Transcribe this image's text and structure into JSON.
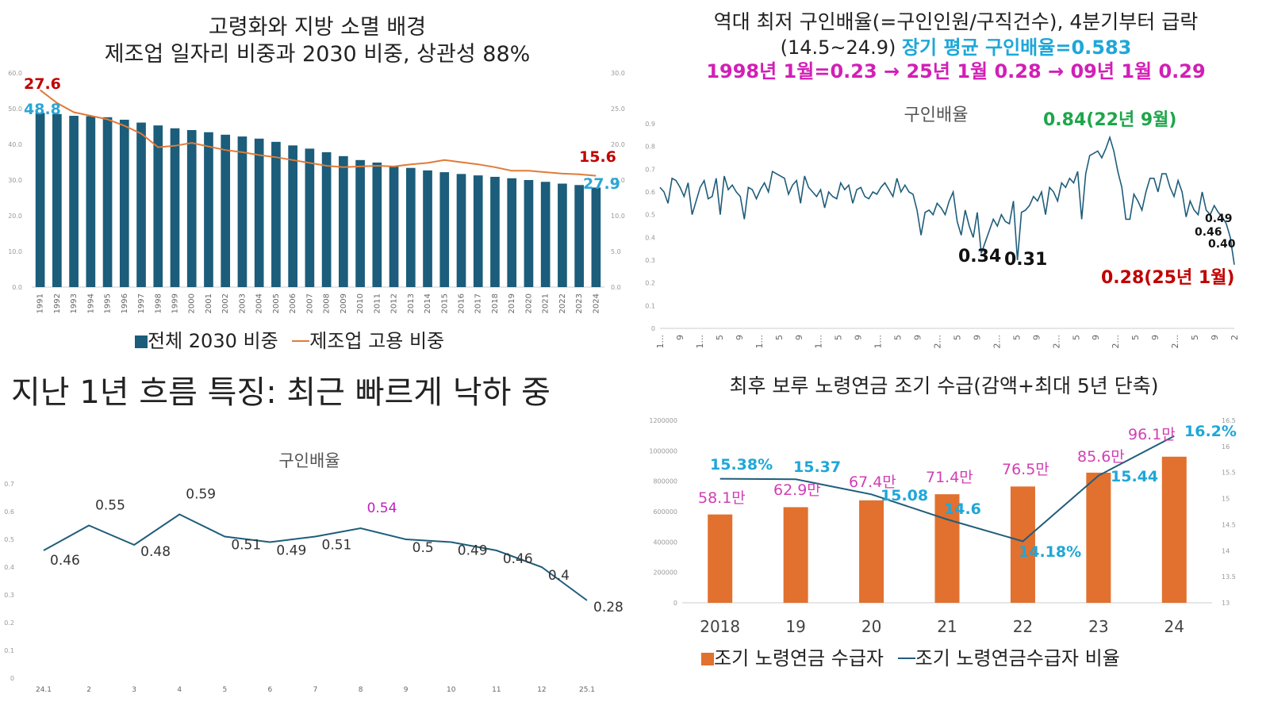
{
  "panel1": {
    "title_line1": "고령화와 지방 소멸 배경",
    "title_line2": "제조업 일자리 비중과 2030 비중, 상관성 88%",
    "legend_bar": "전체 2030 비중",
    "legend_line": "제조업 고용 비중",
    "colors": {
      "bar": "#1b5d7a",
      "line": "#e07b39",
      "red": "#c00000",
      "cyan": "#2aa6d6"
    },
    "callouts": {
      "line_start": "27.6",
      "bar_start": "48.8",
      "line_end": "15.6",
      "bar_end": "27.9"
    },
    "y_left_ticks": [
      "0.0",
      "10.0",
      "20.0",
      "30.0",
      "40.0",
      "50.0",
      "60.0"
    ],
    "y_right_ticks": [
      "0.0",
      "5.0",
      "10.0",
      "15.0",
      "20.0",
      "25.0",
      "30.0"
    ],
    "chart_data": {
      "type": "bar",
      "categories": [
        "1991",
        "1992",
        "1993",
        "1994",
        "1995",
        "1996",
        "1997",
        "1998",
        "1999",
        "2000",
        "2001",
        "2002",
        "2003",
        "2004",
        "2005",
        "2006",
        "2007",
        "2008",
        "2009",
        "2010",
        "2011",
        "2012",
        "2013",
        "2014",
        "2015",
        "2016",
        "2017",
        "2018",
        "2019",
        "2020",
        "2021",
        "2022",
        "2023",
        "2024"
      ],
      "series": [
        {
          "name": "전체 2030 비중",
          "type": "bar",
          "axis": "left",
          "values": [
            48.8,
            48.5,
            48.0,
            47.9,
            47.6,
            46.9,
            46.1,
            45.3,
            44.5,
            44.0,
            43.4,
            42.7,
            42.2,
            41.6,
            40.7,
            39.7,
            38.8,
            37.8,
            36.7,
            35.6,
            34.9,
            34.0,
            33.4,
            32.7,
            32.2,
            31.7,
            31.3,
            30.9,
            30.5,
            30.0,
            29.5,
            29.0,
            28.6,
            27.9
          ]
        },
        {
          "name": "제조업 고용 비중",
          "type": "line",
          "axis": "right",
          "values": [
            27.6,
            25.8,
            24.5,
            24.0,
            23.5,
            22.6,
            21.5,
            19.6,
            19.8,
            20.2,
            19.7,
            19.2,
            18.9,
            18.5,
            18.2,
            17.8,
            17.4,
            17.0,
            16.8,
            16.9,
            17.0,
            16.9,
            17.2,
            17.4,
            17.8,
            17.5,
            17.2,
            16.8,
            16.3,
            16.3,
            16.1,
            15.9,
            15.8,
            15.6
          ]
        }
      ],
      "ylim_left": [
        0,
        60
      ],
      "ylim_right": [
        0,
        30
      ]
    }
  },
  "panel2": {
    "title_line1": "역대 최저 구인배율(=구인인원/구직건수), 4분기부터 급락",
    "title_line2a": "(14.5~24.9) ",
    "title_line2b": "장기 평균 구인배율",
    "title_line2c": "=0.583",
    "title_line3": "1998년 1월=0.23 → 25년 1월 0.28 → 09년 1월 0.29",
    "chart_title": "구인배율",
    "colors": {
      "line": "#1f5d7a",
      "cyan": "#1ea7d8",
      "magenta": "#d21fb6",
      "green": "#1ea64a",
      "red": "#c00000"
    },
    "annotations": {
      "peak": "0.84(22년 9월)",
      "low1": "0.34",
      "low2": "0.31",
      "last": "0.28(25년 1월)",
      "a049": "0.49",
      "a046": "0.46",
      "a040": "0.40"
    },
    "y_ticks": [
      "0",
      "0.1",
      "0.2",
      "0.3",
      "0.4",
      "0.5",
      "0.6",
      "0.7",
      "0.8",
      "0.9"
    ],
    "x_ticks": [
      "1...",
      "9",
      "1...",
      "5",
      "9",
      "1...",
      "5",
      "9",
      "1...",
      "5",
      "9",
      "1...",
      "5",
      "9",
      "2...",
      "5",
      "9",
      "2...",
      "5",
      "9",
      "2...",
      "5",
      "9",
      "2...",
      "5",
      "9",
      "2...",
      "5",
      "9",
      "2"
    ],
    "chart_data": {
      "type": "line",
      "ylim": [
        0,
        0.9
      ],
      "values": [
        0.62,
        0.6,
        0.55,
        0.66,
        0.65,
        0.62,
        0.58,
        0.64,
        0.5,
        0.56,
        0.62,
        0.65,
        0.57,
        0.58,
        0.66,
        0.5,
        0.67,
        0.61,
        0.63,
        0.6,
        0.58,
        0.48,
        0.62,
        0.61,
        0.57,
        0.61,
        0.64,
        0.6,
        0.69,
        0.68,
        0.67,
        0.66,
        0.59,
        0.63,
        0.65,
        0.55,
        0.67,
        0.62,
        0.6,
        0.58,
        0.61,
        0.53,
        0.6,
        0.58,
        0.57,
        0.64,
        0.61,
        0.63,
        0.55,
        0.61,
        0.62,
        0.58,
        0.57,
        0.6,
        0.59,
        0.62,
        0.64,
        0.61,
        0.58,
        0.66,
        0.6,
        0.63,
        0.6,
        0.59,
        0.52,
        0.41,
        0.51,
        0.52,
        0.5,
        0.55,
        0.53,
        0.5,
        0.56,
        0.6,
        0.47,
        0.41,
        0.52,
        0.45,
        0.4,
        0.51,
        0.33,
        0.38,
        0.43,
        0.48,
        0.45,
        0.5,
        0.47,
        0.46,
        0.56,
        0.3,
        0.51,
        0.52,
        0.54,
        0.58,
        0.56,
        0.6,
        0.5,
        0.62,
        0.6,
        0.56,
        0.64,
        0.62,
        0.66,
        0.64,
        0.69,
        0.48,
        0.68,
        0.76,
        0.77,
        0.78,
        0.75,
        0.79,
        0.84,
        0.78,
        0.69,
        0.62,
        0.48,
        0.48,
        0.59,
        0.56,
        0.52,
        0.6,
        0.66,
        0.66,
        0.6,
        0.68,
        0.68,
        0.62,
        0.58,
        0.65,
        0.6,
        0.49,
        0.56,
        0.52,
        0.5,
        0.6,
        0.52,
        0.5,
        0.54,
        0.51,
        0.49,
        0.46,
        0.4,
        0.28
      ]
    }
  },
  "panel3": {
    "heading": "지난 1년 흐름 특징: 최근 빠르게 낙하 중",
    "chart_title": "구인배율",
    "colors": {
      "line": "#1f5d7a",
      "highlight": "#c020c0"
    },
    "y_ticks": [
      "0",
      "0.1",
      "0.2",
      "0.3",
      "0.4",
      "0.5",
      "0.6",
      "0.7"
    ],
    "chart_data": {
      "type": "line",
      "categories": [
        "24.1",
        "2",
        "3",
        "4",
        "5",
        "6",
        "7",
        "8",
        "9",
        "10",
        "11",
        "12",
        "25.1"
      ],
      "values": [
        0.46,
        0.55,
        0.48,
        0.59,
        0.51,
        0.49,
        0.51,
        0.54,
        0.5,
        0.49,
        0.46,
        0.4,
        0.28
      ],
      "labels": [
        "0.46",
        "0.55",
        "0.48",
        "0.59",
        "0.51",
        "0.49",
        "0.51",
        "0.54",
        "0.5",
        "0.49",
        "0.46",
        "0.4",
        "0.28"
      ],
      "ylim": [
        0,
        0.7
      ]
    }
  },
  "panel4": {
    "title": "최후 보루 노령연금 조기 수급(감액+최대 5년 단축)",
    "legend_bar": "조기 노령연금 수급자",
    "legend_line": "조기 노령연금수급자 비율",
    "colors": {
      "bar": "#e2702e",
      "line": "#1f5d7a",
      "bar_label": "#d13fb3",
      "line_label": "#1ea7d8"
    },
    "y_left_ticks": [
      "0",
      "200000",
      "400000",
      "600000",
      "800000",
      "1000000",
      "1200000"
    ],
    "y_right_ticks": [
      "13",
      "13.5",
      "14",
      "14.5",
      "15",
      "15.5",
      "16",
      "16.5"
    ],
    "chart_data": {
      "type": "bar",
      "categories": [
        "2018",
        "19",
        "20",
        "21",
        "22",
        "23",
        "24"
      ],
      "series": [
        {
          "name": "조기 노령연금 수급자",
          "type": "bar",
          "axis": "left",
          "values": [
            581000,
            629000,
            674000,
            714000,
            765000,
            856000,
            961000
          ],
          "labels": [
            "58.1만",
            "62.9만",
            "67.4만",
            "71.4만",
            "76.5만",
            "85.6만",
            "96.1만"
          ]
        },
        {
          "name": "조기 노령연금수급자 비율",
          "type": "line",
          "axis": "right",
          "values": [
            15.38,
            15.37,
            15.08,
            14.6,
            14.18,
            15.44,
            16.2
          ],
          "labels": [
            "15.38%",
            "15.37",
            "15.08",
            "14.6",
            "14.18%",
            "15.44",
            "16.2%"
          ]
        }
      ],
      "ylim_left": [
        0,
        1200000
      ],
      "ylim_right": [
        13,
        16.5
      ]
    }
  }
}
